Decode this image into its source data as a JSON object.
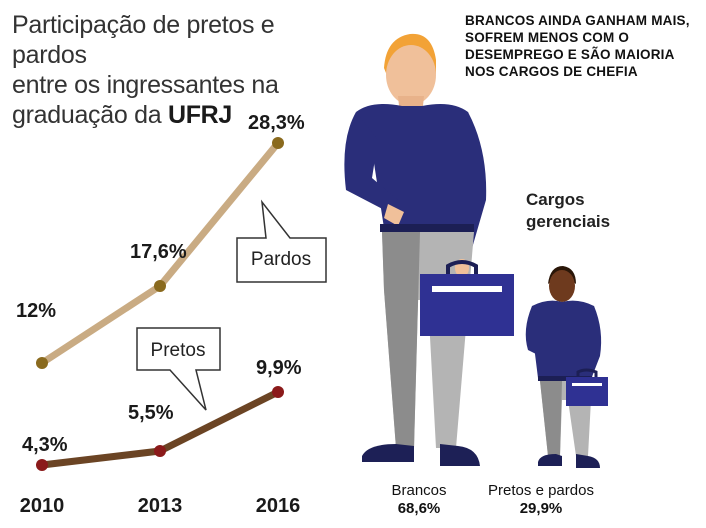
{
  "header": {
    "title_line1": "Participação de pretos e pardos",
    "title_line2": "entre os ingressantes na",
    "title_line3_prefix": "graduação da ",
    "title_line3_bold": "UFRJ"
  },
  "headline": "BRANCOS AINDA GANHAM MAIS, SOFREM MENOS COM O DESEMPREGO E SÃO MAIORIA NOS CARGOS DE CHEFIA",
  "managers": {
    "title": "Cargos gerenciais",
    "groups": [
      {
        "label": "Brancos",
        "value": "68,6%",
        "share": 68.6
      },
      {
        "label": "Pretos e pardos",
        "value": "29,9%",
        "share": 29.9
      }
    ]
  },
  "chart_data": {
    "type": "line",
    "title": "Participação de pretos e pardos entre os ingressantes na graduação da UFRJ",
    "x": [
      "2010",
      "2013",
      "2016"
    ],
    "series": [
      {
        "name": "Pardos",
        "values": [
          12,
          17.6,
          28.3
        ],
        "labels": [
          "12%",
          "17,6%",
          "28,3%"
        ],
        "color": "#c9ab83",
        "marker": "#8a6a1e"
      },
      {
        "name": "Pretos",
        "values": [
          4.3,
          5.5,
          9.9
        ],
        "labels": [
          "4,3%",
          "5,5%",
          "9,9%"
        ],
        "color": "#6b4424",
        "marker": "#8b1a1a"
      }
    ],
    "grid": false,
    "legend": "callouts"
  }
}
